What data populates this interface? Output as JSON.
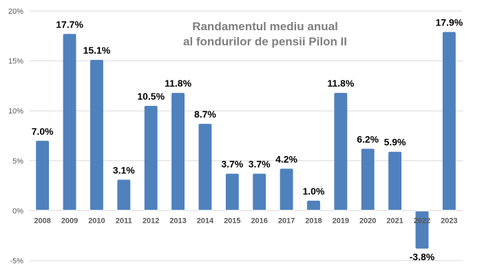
{
  "chart_data": {
    "type": "bar",
    "title_lines": [
      "Randamentul mediu anual",
      "al fondurilor de pensii Pilon II"
    ],
    "xlabel": "",
    "ylabel": "",
    "categories": [
      "2008",
      "2009",
      "2010",
      "2011",
      "2012",
      "2013",
      "2014",
      "2015",
      "2016",
      "2017",
      "2018",
      "2019",
      "2020",
      "2021",
      "2022",
      "2023"
    ],
    "values": [
      7.0,
      17.7,
      15.1,
      3.1,
      10.5,
      11.8,
      8.7,
      3.7,
      3.7,
      4.2,
      1.0,
      11.8,
      6.2,
      5.9,
      -3.8,
      17.9
    ],
    "data_labels": [
      "7.0%",
      "17.7%",
      "15.1%",
      "3.1%",
      "10.5%",
      "11.8%",
      "8.7%",
      "3.7%",
      "3.7%",
      "4.2%",
      "1.0%",
      "11.8%",
      "6.2%",
      "5.9%",
      "-3.8%",
      "17.9%"
    ],
    "ylim": [
      -5,
      20
    ],
    "y_ticks": [
      20,
      15,
      10,
      5,
      0,
      -5
    ],
    "y_tick_labels": [
      "20%",
      "15%",
      "10%",
      "5%",
      "0%",
      "-5%"
    ],
    "grid": true,
    "legend": false,
    "bar_color": "#4f81bd",
    "title_color": "#7f7f7f"
  }
}
